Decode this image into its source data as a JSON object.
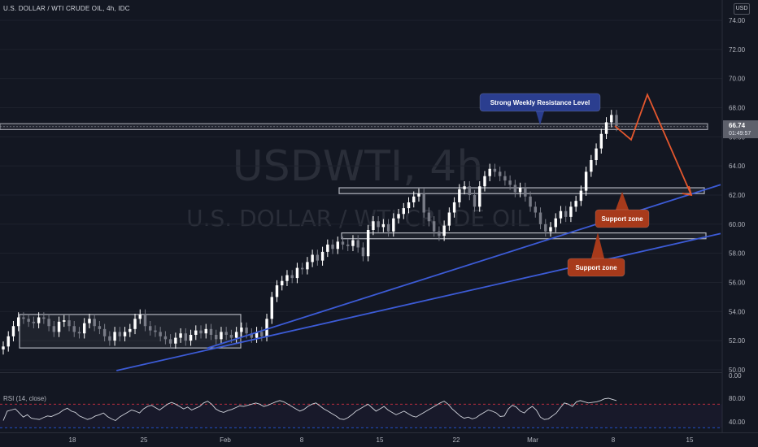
{
  "header": {
    "title": "U.S. DOLLAR / WTI CRUDE OIL, 4h, IDC",
    "currency": "USD"
  },
  "watermark": {
    "symbol": "USDWTI, 4h",
    "name": "U.S. DOLLAR / WTI CRUDE OIL"
  },
  "colors": {
    "background": "#131722",
    "bull": "#ffffff",
    "bear": "#787b86",
    "trendline": "#3c5bd6",
    "arrow": "#e4572e",
    "callout_blue": "#2b3e8f",
    "callout_red": "#a73a1b",
    "rsi_line": "#d1d4dc"
  },
  "price_axis": {
    "ticks": [
      "74.00",
      "72.00",
      "70.00",
      "68.00",
      "66.00",
      "64.00",
      "62.00",
      "60.00",
      "58.00",
      "56.00",
      "54.00",
      "52.00",
      "50.00"
    ],
    "last_price": "66.74",
    "countdown": "01:49:57"
  },
  "time_axis": {
    "ticks": [
      "18",
      "25",
      "Feb",
      "8",
      "15",
      "22",
      "Mar",
      "8",
      "15"
    ]
  },
  "annotations": {
    "resistance_label": "Strong Weekly Resistance Level",
    "support_upper_label": "Support zone",
    "support_lower_label": "Support zone"
  },
  "rsi": {
    "label": "RSI (14, close)",
    "ticks": [
      "0.00",
      "80.00",
      "40.00"
    ],
    "values": [
      42,
      58,
      60,
      62,
      55,
      48,
      52,
      46,
      45,
      44,
      47,
      50,
      49,
      52,
      55,
      60,
      63,
      58,
      56,
      50,
      47,
      44,
      46,
      50,
      52,
      55,
      49,
      45,
      42,
      48,
      52,
      56,
      60,
      58,
      55,
      62,
      66,
      68,
      64,
      60,
      65,
      70,
      73,
      70,
      66,
      62,
      65,
      60,
      63,
      66,
      72,
      75,
      70,
      62,
      58,
      56,
      59,
      61,
      64,
      67,
      66,
      68,
      70,
      72,
      70,
      66,
      68,
      71,
      74,
      76,
      74,
      70,
      66,
      62,
      58,
      61,
      66,
      70,
      72,
      67,
      62,
      58,
      54,
      50,
      45,
      44,
      47,
      52,
      58,
      62,
      66,
      70,
      64,
      58,
      62,
      66,
      60,
      56,
      52,
      55,
      58,
      54,
      50,
      48,
      52,
      56,
      60,
      64,
      68,
      72,
      75,
      70,
      62,
      56,
      50,
      46,
      48,
      45,
      47,
      52,
      56,
      60,
      58,
      55,
      49,
      50,
      62,
      68,
      65,
      58,
      55,
      62,
      66,
      60,
      48,
      44,
      45,
      50,
      55,
      64,
      72,
      70,
      66,
      74,
      76,
      74,
      72,
      73,
      74,
      76,
      79,
      80,
      78,
      76
    ],
    "levels": [
      70,
      30
    ]
  },
  "chart_data": {
    "type": "candlestick",
    "title": "U.S. DOLLAR / WTI CRUDE OIL, 4h, IDC",
    "ylim": [
      49.8,
      75
    ],
    "x_ticks": [
      "18",
      "25",
      "Feb",
      "8",
      "15",
      "22",
      "Mar",
      "8",
      "15"
    ],
    "close": [
      51.6,
      52.3,
      53.0,
      53.6,
      53.5,
      53.3,
      53.2,
      53.6,
      53.5,
      53.0,
      52.6,
      53.3,
      53.4,
      53.0,
      52.6,
      52.5,
      53.2,
      53.5,
      53.0,
      52.8,
      52.3,
      52.0,
      52.6,
      52.3,
      52.6,
      52.8,
      53.5,
      53.8,
      53.0,
      52.7,
      52.6,
      52.3,
      52.1,
      51.8,
      52.2,
      52.5,
      52.0,
      52.4,
      52.7,
      52.5,
      52.8,
      52.4,
      52.1,
      52.6,
      52.4,
      52.2,
      52.6,
      52.9,
      52.5,
      52.2,
      52.6,
      52.3,
      53.5,
      55.0,
      55.8,
      56.1,
      56.5,
      56.3,
      57.0,
      56.9,
      57.4,
      57.9,
      57.5,
      58.1,
      58.6,
      58.3,
      58.8,
      58.6,
      58.5,
      58.9,
      58.4,
      57.8,
      59.6,
      60.2,
      59.8,
      60.0,
      59.5,
      60.4,
      60.7,
      61.1,
      61.5,
      61.9,
      62.1,
      60.8,
      60.2,
      59.5,
      59.2,
      59.9,
      60.8,
      61.5,
      62.4,
      62.6,
      62.0,
      61.2,
      62.6,
      63.3,
      63.8,
      63.6,
      63.3,
      63.0,
      62.7,
      62.2,
      62.5,
      61.9,
      61.2,
      60.8,
      60.0,
      59.5,
      59.8,
      60.4,
      60.9,
      60.5,
      61.2,
      61.6,
      62.3,
      63.6,
      64.4,
      65.2,
      66.2,
      67.0,
      67.5,
      66.74
    ],
    "resistance_zone": [
      66.5,
      66.9
    ],
    "support_zones": [
      [
        62.1,
        62.5
      ],
      [
        59.0,
        59.4
      ]
    ],
    "consolidation_range": [
      51.5,
      53.8
    ],
    "projection": [
      66.74,
      65.8,
      68.9,
      62.0
    ],
    "trendline_upper": [
      [
        0.27,
        51.6
      ],
      [
        1.0,
        62.6
      ]
    ],
    "trendline_lower": [
      [
        0.15,
        50.0
      ],
      [
        1.0,
        59.3
      ]
    ]
  }
}
